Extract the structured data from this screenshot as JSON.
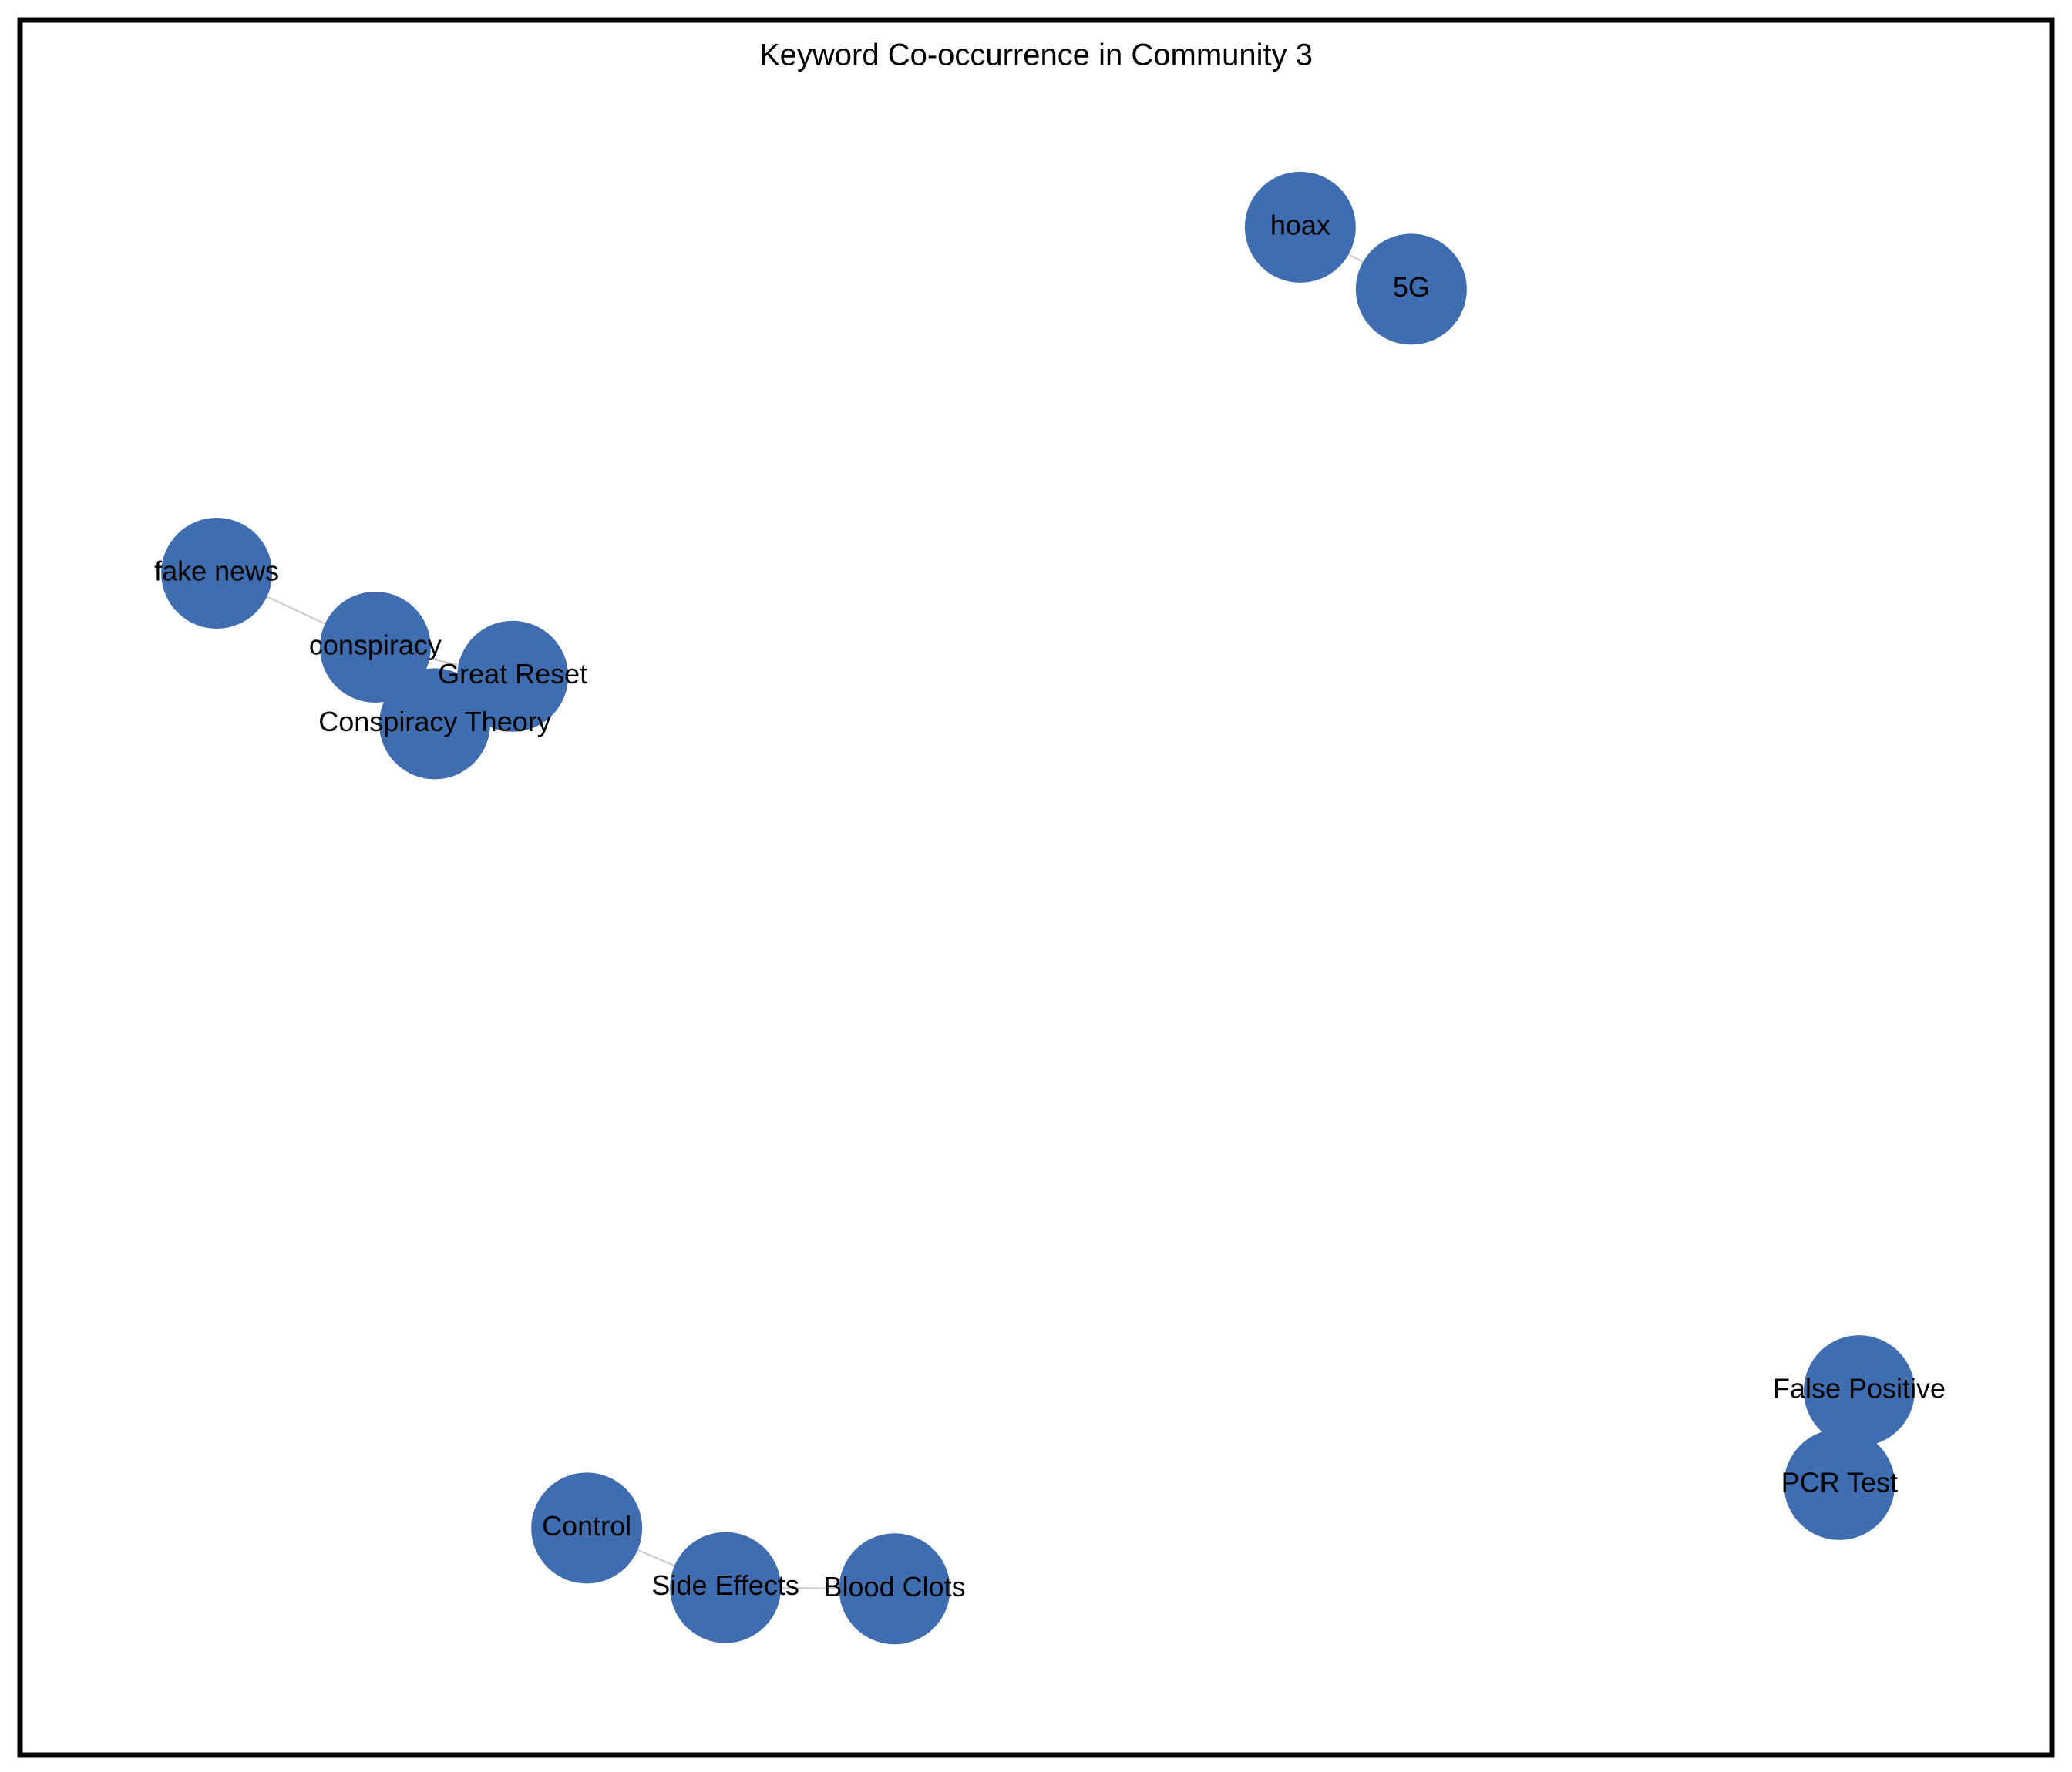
{
  "title": "Keyword Co-occurrence in Community 3",
  "nodes": [
    {
      "label": "hoax"
    },
    {
      "label": "5G"
    },
    {
      "label": "fake news"
    },
    {
      "label": "conspiracy"
    },
    {
      "label": "Great Reset"
    },
    {
      "label": "Conspiracy Theory"
    },
    {
      "label": "False Positive"
    },
    {
      "label": "PCR Test"
    },
    {
      "label": "Control"
    },
    {
      "label": "Side Effects"
    },
    {
      "label": "Blood Clots"
    }
  ]
}
